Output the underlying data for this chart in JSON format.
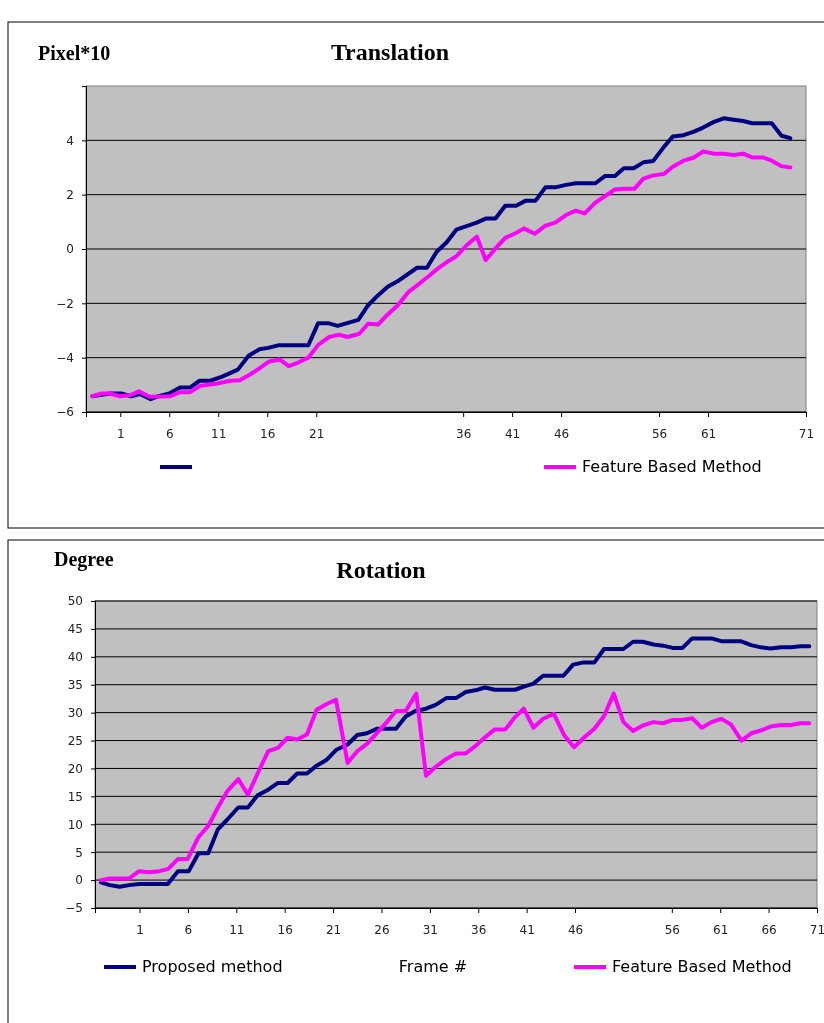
{
  "chart_data": [
    {
      "type": "line",
      "title": "Translation",
      "ylabel": "Pixel*10",
      "xlim": [
        -2.5,
        71
      ],
      "xticks": [
        1,
        6,
        11,
        16,
        21,
        36,
        41,
        46,
        56,
        61,
        71
      ],
      "ylim": [
        -6,
        6
      ],
      "yticks": [
        {
          "value": -6,
          "label": "−6"
        },
        {
          "value": -4,
          "label": "−4"
        },
        {
          "value": -2,
          "label": "−2"
        },
        0,
        2,
        4
      ],
      "grid": "y",
      "legend": "bottom",
      "marker": "none",
      "line_style": "solid",
      "series": [
        {
          "color": "#000080",
          "x": [
            -1.85,
            -0.05,
            1.1,
            2.1,
            3.0,
            4.1,
            4.9,
            6.0,
            7.1,
            8.1,
            9.1,
            10.2,
            11.4,
            13.0,
            14.1,
            15.2,
            16.1,
            17.2,
            20.2,
            21.2,
            22.2,
            23.2,
            25.3,
            26.3,
            27.3,
            28.3,
            29.3,
            31.3,
            32.3,
            33.3,
            34.3,
            35.3,
            37.4,
            38.3,
            39.3,
            40.3,
            41.4,
            42.4,
            43.4,
            44.4,
            45.4,
            46.5,
            47.5,
            49.5,
            50.5,
            51.5,
            52.4,
            53.4,
            54.4,
            55.4,
            56.5,
            57.4,
            58.5,
            59.5,
            60.5,
            61.6,
            62.6,
            63.6,
            64.6,
            65.5,
            67.5,
            68.5,
            69.4
          ],
          "values": [
            -5.42,
            -5.32,
            -5.32,
            -5.42,
            -5.34,
            -5.53,
            -5.42,
            -5.32,
            -5.1,
            -5.1,
            -4.85,
            -4.85,
            -4.7,
            -4.44,
            -3.93,
            -3.69,
            -3.64,
            -3.54,
            -3.54,
            -2.73,
            -2.73,
            -2.83,
            -2.61,
            -2.07,
            -1.71,
            -1.39,
            -1.19,
            -0.69,
            -0.69,
            -0.1,
            0.24,
            0.71,
            0.97,
            1.12,
            1.12,
            1.59,
            1.59,
            1.78,
            1.78,
            2.27,
            2.27,
            2.36,
            2.42,
            2.42,
            2.69,
            2.69,
            2.97,
            2.97,
            3.19,
            3.24,
            3.76,
            4.14,
            4.19,
            4.31,
            4.47,
            4.68,
            4.81,
            4.76,
            4.71,
            4.63,
            4.63,
            4.17,
            4.08
          ]
        },
        {
          "name": "Feature Based Method",
          "color": "#ff00ff",
          "x": [
            -1.85,
            -1.0,
            -0.05,
            1.0,
            2.1,
            2.9,
            4.0,
            6.1,
            7.1,
            8.1,
            9.2,
            10.9,
            12.2,
            13.2,
            14.2,
            15.3,
            16.2,
            17.3,
            18.2,
            19.2,
            20.2,
            21.2,
            22.3,
            23.3,
            24.2,
            25.4,
            26.3,
            27.3,
            28.3,
            29.3,
            30.4,
            31.3,
            32.4,
            33.3,
            34.3,
            35.3,
            36.3,
            37.4,
            38.3,
            39.3,
            40.3,
            41.4,
            42.2,
            43.3,
            44.4,
            45.4,
            46.5,
            47.5,
            48.4,
            49.5,
            50.5,
            51.5,
            52.4,
            53.5,
            54.4,
            55.4,
            56.5,
            57.4,
            58.5,
            59.5,
            60.5,
            61.6,
            62.6,
            63.6,
            64.6,
            65.5,
            66.6,
            67.5,
            68.5,
            69.4
          ],
          "values": [
            -5.42,
            -5.32,
            -5.32,
            -5.42,
            -5.37,
            -5.24,
            -5.44,
            -5.42,
            -5.27,
            -5.27,
            -5.03,
            -4.95,
            -4.85,
            -4.83,
            -4.63,
            -4.37,
            -4.14,
            -4.07,
            -4.31,
            -4.17,
            -4.0,
            -3.53,
            -3.24,
            -3.15,
            -3.24,
            -3.12,
            -2.75,
            -2.78,
            -2.41,
            -2.08,
            -1.59,
            -1.34,
            -1.02,
            -0.75,
            -0.49,
            -0.27,
            0.12,
            0.46,
            -0.41,
            0.02,
            0.41,
            0.59,
            0.76,
            0.56,
            0.86,
            0.97,
            1.25,
            1.41,
            1.31,
            1.71,
            1.95,
            2.19,
            2.22,
            2.22,
            2.59,
            2.71,
            2.76,
            3.03,
            3.25,
            3.36,
            3.59,
            3.51,
            3.51,
            3.46,
            3.51,
            3.37,
            3.37,
            3.25,
            3.05,
            3.0
          ]
        }
      ]
    },
    {
      "type": "line",
      "title": "Rotation",
      "ylabel": "Degree",
      "xlabel": "Frame #",
      "xlim": [
        -3.6,
        71
      ],
      "xticks": [
        1,
        6,
        11,
        16,
        21,
        26,
        31,
        36,
        41,
        46,
        56,
        61,
        66,
        71
      ],
      "ylim": [
        -5,
        50
      ],
      "yticks": [
        {
          "value": -5,
          "label": "−5"
        },
        0,
        5,
        10,
        15,
        20,
        25,
        30,
        35,
        40,
        45,
        50
      ],
      "grid": "y",
      "legend": "bottom",
      "marker": "none",
      "line_style": "solid",
      "series": [
        {
          "name": "Proposed method",
          "color": "#000080",
          "x": [
            -2.98,
            -2.07,
            -1.06,
            -0.06,
            0.95,
            3.92,
            4.98,
            6.09,
            7.09,
            8.1,
            9.1,
            10.1,
            11.2,
            12.2,
            13.2,
            14.3,
            15.3,
            16.3,
            17.3,
            18.3,
            19.3,
            20.3,
            21.3,
            22.5,
            23.5,
            24.5,
            25.5,
            27.5,
            28.5,
            29.5,
            30.6,
            31.6,
            32.7,
            33.7,
            34.7,
            35.7,
            36.7,
            37.7,
            39.8,
            40.8,
            41.7,
            42.7,
            44.8,
            45.8,
            46.9,
            48.0,
            49.0,
            51.0,
            52.0,
            53.0,
            54.1,
            55.1,
            56.1,
            57.1,
            58.1,
            60.1,
            61.1,
            63.1,
            64.2,
            65.2,
            66.2,
            67.3,
            68.3,
            69.3,
            70.2
          ],
          "values": [
            -0.4,
            -0.9,
            -1.2,
            -0.9,
            -0.7,
            -0.7,
            1.6,
            1.6,
            4.8,
            4.8,
            9.1,
            10.9,
            13.0,
            13.0,
            15.2,
            16.2,
            17.4,
            17.4,
            19.1,
            19.1,
            20.5,
            21.5,
            23.3,
            24.3,
            26.0,
            26.3,
            27.1,
            27.1,
            29.3,
            30.3,
            30.7,
            31.4,
            32.6,
            32.6,
            33.7,
            34.0,
            34.5,
            34.1,
            34.1,
            34.7,
            35.2,
            36.6,
            36.6,
            38.6,
            39.0,
            39.0,
            41.4,
            41.4,
            42.7,
            42.7,
            42.2,
            42.0,
            41.6,
            41.6,
            43.3,
            43.3,
            42.8,
            42.8,
            42.1,
            41.7,
            41.5,
            41.7,
            41.7,
            41.9,
            41.9
          ]
        },
        {
          "name": "Feature Based Method",
          "color": "#ff00ff",
          "x": [
            -2.98,
            -2.07,
            -0.06,
            0.95,
            1.96,
            3.06,
            3.97,
            4.98,
            5.98,
            7.09,
            8.1,
            9.1,
            10.1,
            11.2,
            12.2,
            13.2,
            14.3,
            15.3,
            16.3,
            17.3,
            18.3,
            19.3,
            20.3,
            21.3,
            22.5,
            23.5,
            24.5,
            25.5,
            26.5,
            27.5,
            28.5,
            29.6,
            30.6,
            31.6,
            32.7,
            33.7,
            34.7,
            35.7,
            36.7,
            37.7,
            38.8,
            39.8,
            40.7,
            41.7,
            42.7,
            43.8,
            44.9,
            45.9,
            46.9,
            48.0,
            49.0,
            50.0,
            51.0,
            52.0,
            53.0,
            54.1,
            55.1,
            56.1,
            57.1,
            58.1,
            59.1,
            60.1,
            61.1,
            62.1,
            63.2,
            64.2,
            65.2,
            66.2,
            67.3,
            68.3,
            69.3,
            70.2
          ],
          "values": [
            0.0,
            0.3,
            0.3,
            1.6,
            1.4,
            1.6,
            2.0,
            3.8,
            3.8,
            7.7,
            9.7,
            13.0,
            16.0,
            18.1,
            15.3,
            19.1,
            23.1,
            23.7,
            25.5,
            25.2,
            26.1,
            30.5,
            31.5,
            32.3,
            21.0,
            23.1,
            24.4,
            26.3,
            28.2,
            30.3,
            30.3,
            33.4,
            18.7,
            20.3,
            21.7,
            22.7,
            22.7,
            24.0,
            25.6,
            27.0,
            27.0,
            29.2,
            30.7,
            27.3,
            28.9,
            29.8,
            25.9,
            23.8,
            25.5,
            27.1,
            29.4,
            33.4,
            28.3,
            26.7,
            27.7,
            28.3,
            28.1,
            28.7,
            28.7,
            29.0,
            27.3,
            28.3,
            28.9,
            27.9,
            25.0,
            26.3,
            26.8,
            27.5,
            27.8,
            27.8,
            28.1,
            28.1
          ]
        }
      ]
    }
  ]
}
